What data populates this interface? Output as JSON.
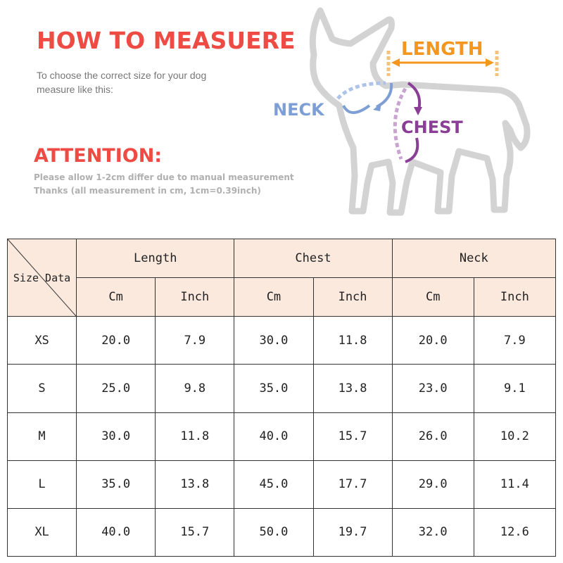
{
  "header": {
    "title": "HOW TO MEASUERE",
    "intro_line1": "To choose the correct size for your dog",
    "intro_line2": "measure like this:",
    "attention_title": "ATTENTION:",
    "note_line1": "Please allow 1-2cm differ due to manual measurement",
    "note_line2": "Thanks (all measurement in cm, 1cm=0.39inch)"
  },
  "figure": {
    "length_label": "LENGTH",
    "neck_label": "NECK",
    "chest_label": "CHEST",
    "colors": {
      "length": "#f5961e",
      "neck": "#7e9ed6",
      "chest": "#8a3e96",
      "dog_outline": "#d3d3d3"
    }
  },
  "table": {
    "corner_label": "Size Data",
    "groups": [
      "Length",
      "Chest",
      "Neck"
    ],
    "units": [
      "Cm",
      "Inch",
      "Cm",
      "Inch",
      "Cm",
      "Inch"
    ],
    "rows": [
      {
        "size": "XS",
        "values": [
          "20.0",
          "7.9",
          "30.0",
          "11.8",
          "20.0",
          "7.9"
        ]
      },
      {
        "size": "S",
        "values": [
          "25.0",
          "9.8",
          "35.0",
          "13.8",
          "23.0",
          "9.1"
        ]
      },
      {
        "size": "M",
        "values": [
          "30.0",
          "11.8",
          "40.0",
          "15.7",
          "26.0",
          "10.2"
        ]
      },
      {
        "size": "L",
        "values": [
          "35.0",
          "13.8",
          "45.0",
          "17.7",
          "29.0",
          "11.4"
        ]
      },
      {
        "size": "XL",
        "values": [
          "40.0",
          "15.7",
          "50.0",
          "19.7",
          "32.0",
          "12.6"
        ]
      }
    ],
    "header_bg": "#fbe9de",
    "border_color": "#333333"
  }
}
